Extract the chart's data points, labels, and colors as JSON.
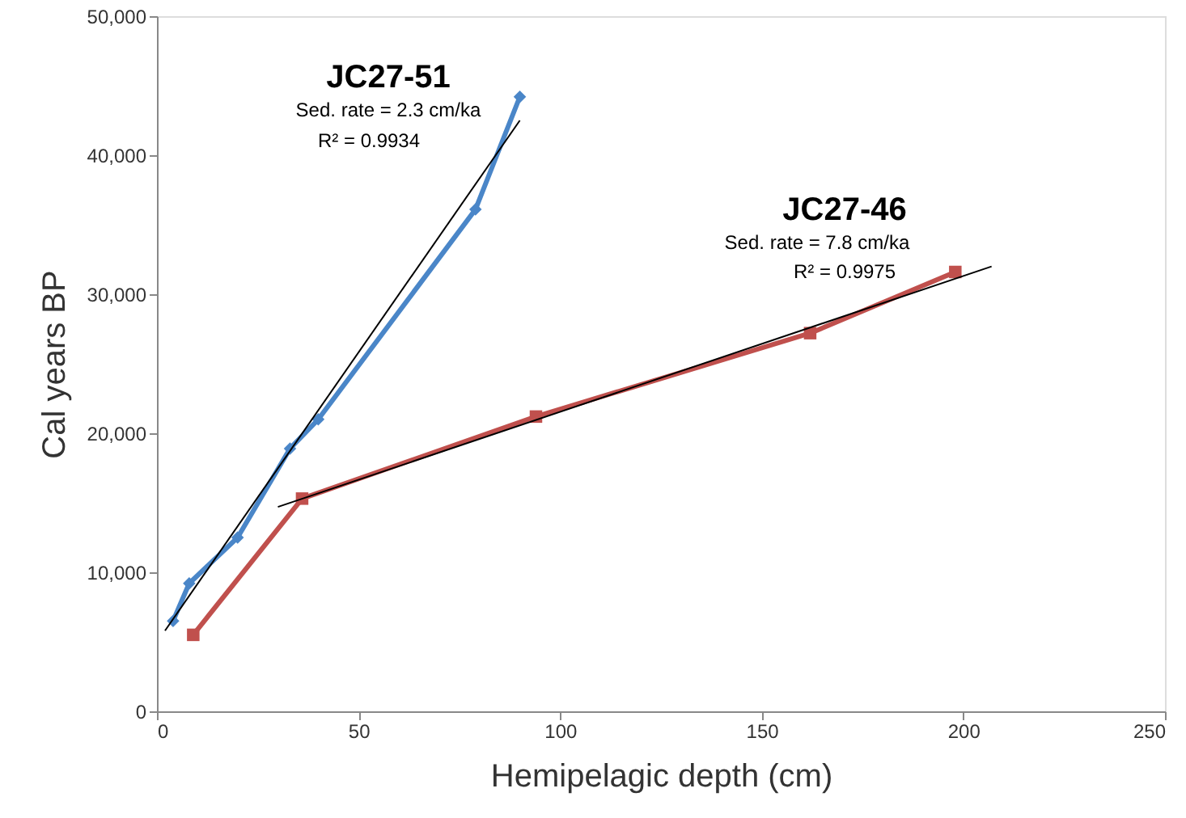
{
  "chart_data": {
    "type": "line",
    "xlabel": "Hemipelagic depth (cm)",
    "ylabel": "Cal years BP",
    "xlim": [
      0,
      250
    ],
    "xticks": [
      0,
      50,
      100,
      150,
      200,
      250
    ],
    "ylim": [
      0,
      50000
    ],
    "yticks": [
      {
        "value": 0,
        "label": "0"
      },
      {
        "value": 10000,
        "label": "10,000"
      },
      {
        "value": 20000,
        "label": "20,000"
      },
      {
        "value": 30000,
        "label": "30,000"
      },
      {
        "value": 40000,
        "label": "40,000"
      },
      {
        "value": 50000,
        "label": "50,000"
      }
    ],
    "grid": false,
    "legend": false,
    "series": [
      {
        "color": "#4a86c8",
        "marker": "diamond",
        "x": [
          4,
          8,
          20,
          33,
          40,
          79,
          90
        ],
        "values": [
          6500,
          9200,
          12500,
          18900,
          21000,
          36100,
          44200
        ]
      },
      {
        "color": "#c0504d",
        "marker": "square",
        "x": [
          9,
          36,
          94,
          162,
          198
        ],
        "values": [
          5500,
          15300,
          21200,
          27200,
          31600
        ]
      },
      {
        "color": "#000000",
        "marker": "none",
        "x": [
          2,
          90
        ],
        "values": [
          5800,
          42500
        ]
      },
      {
        "color": "#000000",
        "marker": "none",
        "x": [
          30,
          207
        ],
        "values": [
          14700,
          32000
        ]
      }
    ],
    "annotations": [
      "JC27-51",
      "Sed. rate = 2.3 cm/ka",
      "R² = 0.9934",
      "JC27-46",
      "Sed. rate = 7.8 cm/ka",
      "R² = 0.9975"
    ]
  }
}
